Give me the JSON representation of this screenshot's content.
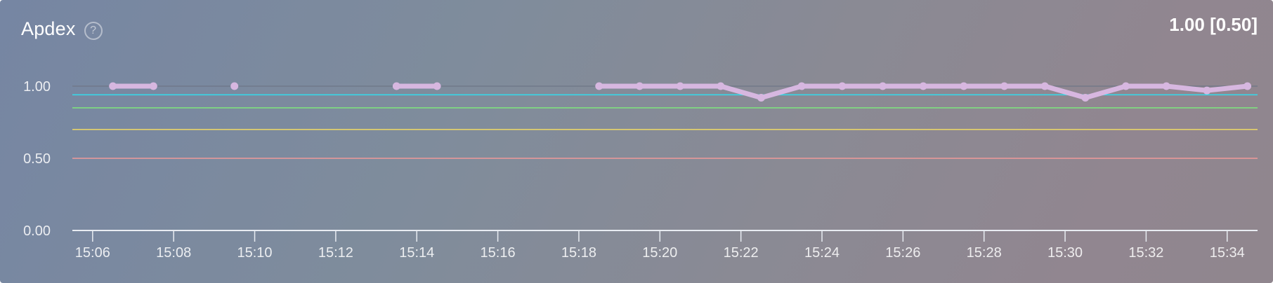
{
  "panel": {
    "title": "Apdex",
    "help_icon": "question-circle-icon",
    "summary": "1.00 [0.50]"
  },
  "colors": {
    "series": "#d7b7e0",
    "threshold_cyan": "#37d7e8",
    "threshold_green": "#7fe07f",
    "threshold_yellow": "#e6d36a",
    "threshold_red": "#ef9a9a",
    "axis": "#e8ecf2",
    "gridline": "#6e7686"
  },
  "chart_data": {
    "type": "line",
    "title": "",
    "xlabel": "",
    "ylabel": "",
    "ylim": [
      0,
      1
    ],
    "xlim": [
      "15:05:30",
      "15:34:45"
    ],
    "y_ticks": [
      "0.00",
      "0.50",
      "1.00"
    ],
    "x_ticks": [
      "15:06",
      "15:08",
      "15:10",
      "15:12",
      "15:14",
      "15:16",
      "15:18",
      "15:20",
      "15:22",
      "15:24",
      "15:26",
      "15:28",
      "15:30",
      "15:32",
      "15:34"
    ],
    "series": [
      {
        "color": "#d7b7e0",
        "points": [
          {
            "x": "15:06:30",
            "y": 1.0
          },
          {
            "x": "15:07:30",
            "y": 1.0
          },
          {
            "x": "15:08:30",
            "y": null
          },
          {
            "x": "15:09:30",
            "y": 1.0
          },
          {
            "x": "15:10:30",
            "y": null
          },
          {
            "x": "15:13:30",
            "y": 1.0
          },
          {
            "x": "15:14:30",
            "y": 1.0
          },
          {
            "x": "15:15:30",
            "y": null
          },
          {
            "x": "15:18:30",
            "y": 1.0
          },
          {
            "x": "15:19:30",
            "y": 1.0
          },
          {
            "x": "15:20:30",
            "y": 1.0
          },
          {
            "x": "15:21:30",
            "y": 1.0
          },
          {
            "x": "15:22:30",
            "y": 0.92
          },
          {
            "x": "15:23:30",
            "y": 1.0
          },
          {
            "x": "15:24:30",
            "y": 1.0
          },
          {
            "x": "15:25:30",
            "y": 1.0
          },
          {
            "x": "15:26:30",
            "y": 1.0
          },
          {
            "x": "15:27:30",
            "y": 1.0
          },
          {
            "x": "15:28:30",
            "y": 1.0
          },
          {
            "x": "15:29:30",
            "y": 1.0
          },
          {
            "x": "15:30:30",
            "y": 0.92
          },
          {
            "x": "15:31:30",
            "y": 1.0
          },
          {
            "x": "15:32:30",
            "y": 1.0
          },
          {
            "x": "15:33:30",
            "y": 0.97
          },
          {
            "x": "15:34:30",
            "y": 1.0
          }
        ]
      }
    ],
    "thresholds": [
      {
        "value": 0.94,
        "color": "#37d7e8"
      },
      {
        "value": 0.85,
        "color": "#7fe07f"
      },
      {
        "value": 0.7,
        "color": "#e6d36a"
      },
      {
        "value": 0.5,
        "color": "#ef9a9a"
      }
    ],
    "grid": true,
    "legend": "none"
  }
}
